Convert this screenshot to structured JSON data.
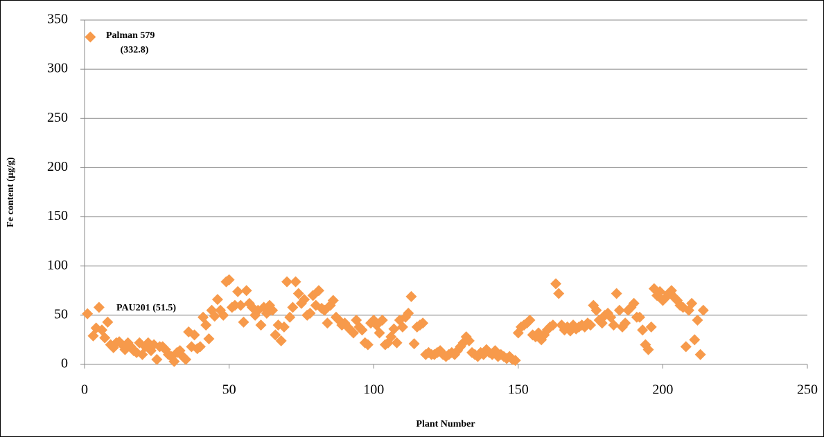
{
  "chart_data": {
    "type": "scatter",
    "marker": "diamond",
    "color": "#f79a4b",
    "grid": true,
    "xlabel": "Plant Number",
    "ylabel": "Fe content (µg/g)",
    "annotations": [
      "Palman 579",
      "(332.8)",
      "PAU201 (51.5)"
    ],
    "xlim": [
      0,
      250
    ],
    "xticks": [
      0,
      50,
      100,
      150,
      200,
      250
    ],
    "ylim": [
      0,
      350
    ],
    "yticks": [
      0,
      50,
      100,
      150,
      200,
      250,
      300,
      350
    ],
    "x": [
      1,
      2,
      3,
      4,
      5,
      6,
      7,
      8,
      9,
      10,
      11,
      12,
      13,
      14,
      15,
      16,
      17,
      18,
      19,
      20,
      21,
      22,
      23,
      24,
      25,
      26,
      27,
      28,
      29,
      30,
      31,
      32,
      33,
      34,
      35,
      36,
      37,
      38,
      39,
      40,
      41,
      42,
      43,
      44,
      45,
      46,
      47,
      48,
      49,
      50,
      51,
      52,
      53,
      54,
      55,
      56,
      57,
      58,
      59,
      60,
      61,
      62,
      63,
      64,
      65,
      66,
      67,
      68,
      69,
      70,
      71,
      72,
      73,
      74,
      75,
      76,
      77,
      78,
      79,
      80,
      81,
      82,
      83,
      84,
      85,
      86,
      87,
      88,
      89,
      90,
      91,
      92,
      93,
      94,
      95,
      96,
      97,
      98,
      99,
      100,
      101,
      102,
      103,
      104,
      105,
      106,
      107,
      108,
      109,
      110,
      111,
      112,
      113,
      114,
      115,
      116,
      117,
      118,
      119,
      120,
      121,
      122,
      123,
      124,
      125,
      126,
      127,
      128,
      129,
      130,
      131,
      132,
      133,
      134,
      135,
      136,
      137,
      138,
      139,
      140,
      141,
      142,
      143,
      144,
      145,
      146,
      147,
      148,
      149,
      150,
      151,
      152,
      153,
      154,
      155,
      156,
      157,
      158,
      159,
      160,
      161,
      162,
      163,
      164,
      165,
      166,
      167,
      168,
      169,
      170,
      171,
      172,
      173,
      174,
      175,
      176,
      177,
      178,
      179,
      180,
      181,
      182,
      183,
      184,
      185,
      186,
      187,
      188,
      189,
      190,
      191,
      192,
      193,
      194,
      195,
      196,
      197,
      198,
      199,
      200,
      201,
      202,
      203,
      204,
      205,
      206,
      207,
      208,
      209,
      210,
      211,
      212,
      213,
      214
    ],
    "values": [
      51.5,
      332.8,
      29,
      37,
      58,
      35,
      27,
      43,
      20,
      17,
      22,
      23,
      20,
      15,
      22,
      18,
      14,
      12,
      22,
      10,
      18,
      22,
      14,
      20,
      5,
      18,
      18,
      15,
      10,
      8,
      3,
      12,
      14,
      8,
      5,
      33,
      18,
      30,
      16,
      18,
      48,
      40,
      26,
      55,
      49,
      66,
      55,
      50,
      84,
      86,
      58,
      60,
      74,
      60,
      43,
      75,
      62,
      58,
      50,
      55,
      40,
      58,
      52,
      60,
      55,
      30,
      40,
      24,
      38,
      84,
      48,
      58,
      84,
      72,
      62,
      66,
      50,
      52,
      70,
      60,
      75,
      57,
      55,
      42,
      60,
      65,
      48,
      45,
      40,
      42,
      38,
      35,
      32,
      45,
      38,
      35,
      22,
      20,
      42,
      45,
      40,
      32,
      45,
      20,
      22,
      28,
      36,
      22,
      45,
      38,
      48,
      52,
      69,
      21,
      38,
      40,
      42,
      10,
      12,
      10,
      10,
      12,
      14,
      10,
      8,
      10,
      12,
      10,
      14,
      18,
      22,
      28,
      24,
      12,
      10,
      8,
      12,
      10,
      15,
      12,
      10,
      14,
      8,
      10,
      8,
      6,
      8,
      5,
      4,
      32,
      38,
      40,
      42,
      45,
      30,
      28,
      32,
      25,
      30,
      35,
      38,
      40,
      82,
      72,
      40,
      35,
      38,
      34,
      40,
      36,
      38,
      40,
      38,
      42,
      40,
      60,
      55,
      45,
      42,
      50,
      52,
      48,
      40,
      72,
      55,
      38,
      42,
      55,
      58,
      62,
      48,
      48,
      35,
      20,
      15,
      38,
      77,
      70,
      74,
      65,
      68,
      72,
      75,
      68,
      65,
      60,
      58,
      18,
      55,
      62,
      25,
      45,
      10,
      55
    ]
  }
}
